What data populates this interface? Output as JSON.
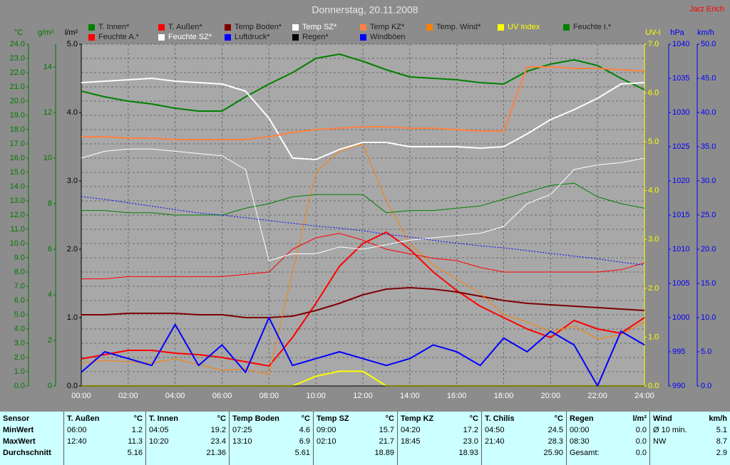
{
  "chart_data": {
    "type": "line",
    "title": "Donnerstag, 20.11.2008",
    "author": "Jarz Erich",
    "grid": true,
    "x": [
      0,
      1,
      2,
      3,
      4,
      5,
      6,
      7,
      8,
      9,
      10,
      11,
      12,
      13,
      14,
      15,
      16,
      17,
      18,
      19,
      20,
      21,
      22,
      23,
      24
    ],
    "xlim": [
      0,
      24
    ],
    "xticks": [
      {
        "value": 0,
        "label": "00:00"
      },
      {
        "value": 2,
        "label": "02:00"
      },
      {
        "value": 4,
        "label": "04:00"
      },
      {
        "value": 6,
        "label": "06:00"
      },
      {
        "value": 8,
        "label": "08:00"
      },
      {
        "value": 10,
        "label": "10:00"
      },
      {
        "value": 12,
        "label": "12:00"
      },
      {
        "value": 14,
        "label": "14:00"
      },
      {
        "value": 16,
        "label": "16:00"
      },
      {
        "value": 18,
        "label": "18:00"
      },
      {
        "value": 20,
        "label": "20:00"
      },
      {
        "value": 22,
        "label": "22:00"
      },
      {
        "value": 24,
        "label": "24:00"
      }
    ],
    "axes": [
      {
        "id": "temp",
        "title": "°C",
        "side": "left",
        "color": "#007800",
        "lim": [
          0,
          24
        ],
        "ticks": [
          {
            "value": 0,
            "label": "0.0"
          },
          {
            "value": 1,
            "label": "1.0"
          },
          {
            "value": 2,
            "label": "2.0"
          },
          {
            "value": 3,
            "label": "3.0"
          },
          {
            "value": 4,
            "label": "4.0"
          },
          {
            "value": 5,
            "label": "5.0"
          },
          {
            "value": 6,
            "label": "6.0"
          },
          {
            "value": 7,
            "label": "7.0"
          },
          {
            "value": 8,
            "label": "8.0"
          },
          {
            "value": 9,
            "label": "9.0"
          },
          {
            "value": 10,
            "label": "10.0"
          },
          {
            "value": 11,
            "label": "11.0"
          },
          {
            "value": 12,
            "label": "12.0"
          },
          {
            "value": 13,
            "label": "13.0"
          },
          {
            "value": 14,
            "label": "14.0"
          },
          {
            "value": 15,
            "label": "15.0"
          },
          {
            "value": 16,
            "label": "16.0"
          },
          {
            "value": 17,
            "label": "17.0"
          },
          {
            "value": 18,
            "label": "18.0"
          },
          {
            "value": 19,
            "label": "19.0"
          },
          {
            "value": 20,
            "label": "20.0"
          },
          {
            "value": 21,
            "label": "21.0"
          },
          {
            "value": 22,
            "label": "22.0"
          },
          {
            "value": 23,
            "label": "23.0"
          },
          {
            "value": 24,
            "label": "24.0"
          }
        ]
      },
      {
        "id": "hum",
        "title": "g/m³",
        "side": "left",
        "color": "#007800",
        "lim": [
          0,
          15
        ],
        "ticks": [
          0,
          2,
          4,
          6,
          8,
          10,
          12,
          14
        ]
      },
      {
        "id": "rain",
        "title": "l/m²",
        "side": "left",
        "color": "#000000",
        "lim": [
          0,
          5
        ],
        "ticks": [
          {
            "value": 0,
            "label": "0.0"
          },
          {
            "value": 1,
            "label": "1.0"
          },
          {
            "value": 2,
            "label": "2.0"
          },
          {
            "value": 3,
            "label": "3.0"
          },
          {
            "value": 4,
            "label": "4.0"
          },
          {
            "value": 5,
            "label": "5.0"
          }
        ]
      },
      {
        "id": "uv",
        "title": "UV-I",
        "side": "right",
        "color": "#ffff00",
        "lim": [
          0,
          7
        ],
        "ticks": [
          {
            "value": 0,
            "label": "0.0"
          },
          {
            "value": 1,
            "label": "1.0"
          },
          {
            "value": 2,
            "label": "2.0"
          },
          {
            "value": 3,
            "label": "3.0"
          },
          {
            "value": 4,
            "label": "4.0"
          },
          {
            "value": 5,
            "label": "5.0"
          },
          {
            "value": 6,
            "label": "6.0"
          },
          {
            "value": 7,
            "label": "7.0"
          }
        ]
      },
      {
        "id": "hpa",
        "title": "hPa",
        "side": "right",
        "color": "#0000ff",
        "lim": [
          990,
          1040
        ],
        "ticks": [
          990,
          995,
          1000,
          1005,
          1010,
          1015,
          1020,
          1025,
          1030,
          1035,
          1040
        ]
      },
      {
        "id": "wind",
        "title": "km/h",
        "side": "right",
        "color": "#0000ff",
        "lim": [
          0,
          50
        ],
        "ticks": [
          {
            "value": 0,
            "label": "0.0"
          },
          {
            "value": 5,
            "label": "5.0"
          },
          {
            "value": 10,
            "label": "10.0"
          },
          {
            "value": 15,
            "label": "15.0"
          },
          {
            "value": 20,
            "label": "20.0"
          },
          {
            "value": 25,
            "label": "25.0"
          },
          {
            "value": 30,
            "label": "30.0"
          },
          {
            "value": 35,
            "label": "35.0"
          },
          {
            "value": 40,
            "label": "40.0"
          },
          {
            "value": 45,
            "label": "45.0"
          },
          {
            "value": 50,
            "label": "50.0"
          }
        ]
      }
    ],
    "series": [
      {
        "name": "T. Innen*",
        "color": "#008000",
        "axis": "temp",
        "style": "thick",
        "values": [
          20.7,
          20.3,
          20.0,
          19.8,
          19.5,
          19.3,
          19.3,
          20.3,
          21.2,
          22.0,
          23.0,
          23.3,
          22.8,
          22.2,
          21.7,
          21.6,
          21.5,
          21.3,
          21.2,
          22.1,
          22.6,
          22.9,
          22.5,
          21.6,
          20.8
        ]
      },
      {
        "name": "T. Außen*",
        "color": "#ff0000",
        "axis": "temp",
        "style": "thick",
        "values": [
          1.9,
          2.2,
          2.5,
          2.5,
          2.3,
          2.2,
          2.0,
          1.7,
          1.4,
          3.4,
          5.8,
          8.4,
          10.0,
          10.8,
          9.6,
          8.0,
          6.7,
          5.6,
          4.8,
          4.0,
          3.4,
          4.6,
          4.0,
          3.7,
          4.8
        ]
      },
      {
        "name": "Temp Boden*",
        "color": "#800000",
        "axis": "temp",
        "style": "thick",
        "values": [
          5.0,
          5.0,
          5.1,
          5.1,
          5.1,
          5.0,
          5.0,
          4.8,
          4.8,
          4.9,
          5.3,
          5.8,
          6.4,
          6.8,
          6.9,
          6.8,
          6.6,
          6.3,
          6.0,
          5.8,
          5.7,
          5.6,
          5.5,
          5.4,
          5.3
        ]
      },
      {
        "name": "Temp SZ*",
        "color": "#ffffff",
        "axis": "temp",
        "style": "thick",
        "values": [
          21.3,
          21.4,
          21.5,
          21.6,
          21.4,
          21.3,
          21.2,
          20.7,
          18.8,
          16.0,
          15.9,
          16.6,
          17.1,
          17.1,
          16.8,
          16.8,
          16.8,
          16.7,
          16.8,
          17.7,
          18.7,
          19.4,
          20.2,
          21.2,
          21.3
        ]
      },
      {
        "name": "Temp KZ*",
        "color": "#ff8040",
        "axis": "temp",
        "style": "thick",
        "values": [
          17.5,
          17.5,
          17.4,
          17.4,
          17.3,
          17.3,
          17.3,
          17.3,
          17.5,
          17.8,
          18.0,
          18.1,
          18.2,
          18.2,
          18.1,
          18.1,
          18.0,
          17.9,
          17.9,
          22.4,
          22.4,
          22.3,
          22.3,
          22.2,
          22.1
        ]
      },
      {
        "name": "Temp. Wind*",
        "color": "#ff8000",
        "axis": "temp",
        "style": "thin",
        "values": [
          1.6,
          1.8,
          1.7,
          1.6,
          1.9,
          1.5,
          1.1,
          1.2,
          0.8,
          8.0,
          15.0,
          16.5,
          17.0,
          13.0,
          10.0,
          8.5,
          7.5,
          6.5,
          5.0,
          4.5,
          3.8,
          4.2,
          3.3,
          3.6,
          4.5
        ]
      },
      {
        "name": "UV Index",
        "color": "#ffff00",
        "axis": "uv",
        "style": "thick",
        "values": [
          0,
          0,
          0,
          0,
          0,
          0,
          0,
          0,
          0,
          0,
          0.2,
          0.3,
          0.3,
          0,
          0,
          0,
          0,
          0,
          0,
          0,
          0,
          0,
          0,
          0,
          0
        ]
      },
      {
        "name": "Feuchte I.*",
        "color": "#008000",
        "axis": "hum",
        "style": "thin",
        "values": [
          7.7,
          7.7,
          7.6,
          7.6,
          7.5,
          7.5,
          7.5,
          7.8,
          8.0,
          8.3,
          8.4,
          8.4,
          8.4,
          7.6,
          7.7,
          7.7,
          7.8,
          7.9,
          8.2,
          8.5,
          8.8,
          8.9,
          8.3,
          8.0,
          7.8
        ]
      },
      {
        "name": "Feuchte A.*",
        "color": "#ff0000",
        "axis": "hum",
        "style": "thin",
        "values": [
          4.7,
          4.7,
          4.8,
          4.8,
          4.8,
          4.8,
          4.8,
          4.9,
          5.0,
          6.0,
          6.5,
          6.7,
          6.4,
          6.0,
          5.8,
          5.6,
          5.5,
          5.2,
          5.0,
          5.0,
          5.0,
          5.0,
          5.0,
          5.1,
          5.4
        ]
      },
      {
        "name": "Feuchte SZ*",
        "color": "#ffffff",
        "axis": "hum",
        "style": "thin",
        "values": [
          10.0,
          10.3,
          10.4,
          10.4,
          10.3,
          10.2,
          10.1,
          9.5,
          5.5,
          5.8,
          5.8,
          6.1,
          6.0,
          6.2,
          6.4,
          6.5,
          6.6,
          6.7,
          7.0,
          8.0,
          8.4,
          9.5,
          9.7,
          9.8,
          10.0
        ]
      },
      {
        "name": "Luftdruck*",
        "color": "#0000ff",
        "axis": "hpa",
        "style": "dotted",
        "values": [
          1017.7,
          1017.3,
          1016.8,
          1016.3,
          1015.8,
          1015.3,
          1015.0,
          1014.6,
          1014.2,
          1013.8,
          1013.4,
          1013.1,
          1012.7,
          1012.2,
          1011.8,
          1011.3,
          1010.9,
          1010.5,
          1010.2,
          1009.8,
          1009.4,
          1009.0,
          1008.6,
          1008.1,
          1007.7
        ]
      },
      {
        "name": "Regen*",
        "color": "#000000",
        "axis": "rain",
        "style": "thin",
        "values": [
          0,
          0,
          0,
          0,
          0,
          0,
          0,
          0,
          0,
          0,
          0,
          0,
          0,
          0,
          0,
          0,
          0,
          0,
          0,
          0,
          0,
          0,
          0,
          0,
          0
        ]
      },
      {
        "name": "Windböen",
        "color": "#0000ff",
        "axis": "wind",
        "style": "thick",
        "values": [
          2,
          5,
          4,
          3,
          9,
          3,
          6,
          2,
          10,
          3,
          4,
          5,
          4,
          3,
          4,
          6,
          5,
          3,
          7,
          5,
          8,
          6,
          0,
          8,
          6
        ]
      }
    ]
  },
  "stats": {
    "corner": "Sensor",
    "groups": [
      {
        "name": "T. Außen",
        "unit": "°C"
      },
      {
        "name": "T. Innen",
        "unit": "°C"
      },
      {
        "name": "Temp Boden",
        "unit": "°C"
      },
      {
        "name": "Temp SZ",
        "unit": "°C"
      },
      {
        "name": "Temp KZ",
        "unit": "°C"
      },
      {
        "name": "T. Chilis",
        "unit": "°C"
      },
      {
        "name": "Regen",
        "unit": "l/m²"
      },
      {
        "name": "Wind",
        "unit": "km/h"
      }
    ],
    "rows": [
      {
        "label": "MinWert",
        "cells": [
          {
            "time": "06:00",
            "value": "1.2"
          },
          {
            "time": "04:05",
            "value": "19.2"
          },
          {
            "time": "07:25",
            "value": "4.6"
          },
          {
            "time": "09:00",
            "value": "15.7"
          },
          {
            "time": "04:20",
            "value": "17.2"
          },
          {
            "time": "04:50",
            "value": "24.5"
          },
          {
            "time": "00:00",
            "value": "0.0"
          },
          {
            "time": "Ø 10 min.",
            "value": "5.1"
          }
        ]
      },
      {
        "label": "MaxWert",
        "cells": [
          {
            "time": "12:40",
            "value": "11.3"
          },
          {
            "time": "10:20",
            "value": "23.4"
          },
          {
            "time": "13:10",
            "value": "6.9"
          },
          {
            "time": "02:10",
            "value": "21.7"
          },
          {
            "time": "18:45",
            "value": "23.0"
          },
          {
            "time": "21:40",
            "value": "28.3"
          },
          {
            "time": "08:30",
            "value": "0.0"
          },
          {
            "time": "NW",
            "value": "8.7"
          }
        ]
      },
      {
        "label": "Durchschnitt",
        "cells": [
          {
            "value": "5.16"
          },
          {
            "value": "21.36"
          },
          {
            "value": "5.61"
          },
          {
            "value": "18.89"
          },
          {
            "value": "18.93"
          },
          {
            "value": "25.90"
          },
          {
            "time": "Gesamt:",
            "value": "0.0"
          },
          {
            "value": "2.9"
          }
        ]
      }
    ]
  }
}
